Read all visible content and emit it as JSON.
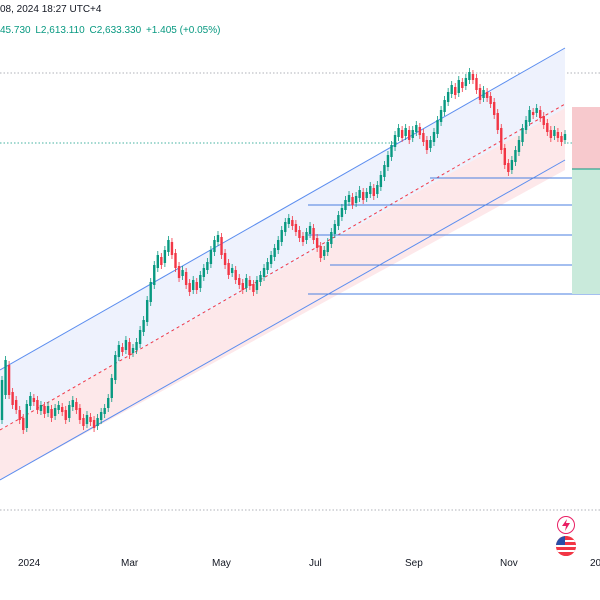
{
  "header": {
    "title_fragment": "08, 2024 18:27 UTC+4",
    "ohlc": {
      "h_fragment": "45.730",
      "low": "L2,613.110",
      "close": "C2,633.330",
      "change": "+1.405 (+0.05%)"
    }
  },
  "colors": {
    "up": "#089981",
    "down": "#f23645",
    "channel_line": "#5b8def",
    "channel_mid": "#f23645",
    "channel_upper_fill": "#eef2fd",
    "channel_lower_fill": "#fde8ea",
    "level_line": "#4a7fe0",
    "stop_zone": "#f7c9cd",
    "target_zone": "#c9eadb"
  },
  "x_axis": {
    "labels": [
      "2024",
      "Mar",
      "May",
      "Jul",
      "Sep",
      "Nov",
      "20"
    ]
  },
  "icons": [
    "lightning-icon",
    "flag-icon"
  ],
  "chart_data": {
    "type": "candlestick",
    "title": "",
    "xlabel": "",
    "ylabel": "",
    "x_ticks": [
      "2024",
      "Mar",
      "May",
      "Jul",
      "Sep",
      "Nov",
      "20"
    ],
    "grid": true,
    "y_axis_visible": false,
    "candles": [
      [
        420,
        380
      ],
      [
        395,
        360
      ],
      [
        365,
        395
      ],
      [
        392,
        405
      ],
      [
        400,
        410
      ],
      [
        410,
        420
      ],
      [
        418,
        430
      ],
      [
        428,
        404
      ],
      [
        406,
        396
      ],
      [
        398,
        402
      ],
      [
        400,
        410
      ],
      [
        411,
        405
      ],
      [
        406,
        414
      ],
      [
        413,
        406
      ],
      [
        409,
        418
      ],
      [
        416,
        408
      ],
      [
        410,
        405
      ],
      [
        407,
        412
      ],
      [
        410,
        420
      ],
      [
        418,
        405
      ],
      [
        407,
        400
      ],
      [
        402,
        410
      ],
      [
        408,
        420
      ],
      [
        418,
        426
      ],
      [
        424,
        415
      ],
      [
        417,
        422
      ],
      [
        420,
        428
      ],
      [
        426,
        418
      ],
      [
        420,
        412
      ],
      [
        414,
        408
      ],
      [
        408,
        398
      ],
      [
        398,
        378
      ],
      [
        380,
        355
      ],
      [
        357,
        345
      ],
      [
        347,
        352
      ],
      [
        350,
        340
      ],
      [
        342,
        355
      ],
      [
        353,
        348
      ],
      [
        350,
        342
      ],
      [
        344,
        330
      ],
      [
        332,
        320
      ],
      [
        322,
        300
      ],
      [
        302,
        282
      ],
      [
        285,
        265
      ],
      [
        268,
        255
      ],
      [
        257,
        265
      ],
      [
        263,
        250
      ],
      [
        252,
        240
      ],
      [
        242,
        255
      ],
      [
        253,
        268
      ],
      [
        266,
        278
      ],
      [
        276,
        270
      ],
      [
        272,
        285
      ],
      [
        283,
        292
      ],
      [
        290,
        280
      ],
      [
        282,
        290
      ],
      [
        288,
        275
      ],
      [
        277,
        268
      ],
      [
        270,
        262
      ],
      [
        264,
        250
      ],
      [
        252,
        240
      ],
      [
        242,
        235
      ],
      [
        237,
        255
      ],
      [
        253,
        265
      ],
      [
        263,
        275
      ],
      [
        273,
        268
      ],
      [
        270,
        280
      ],
      [
        278,
        285
      ],
      [
        283,
        290
      ],
      [
        288,
        278
      ],
      [
        280,
        286
      ],
      [
        284,
        292
      ],
      [
        290,
        280
      ],
      [
        282,
        275
      ],
      [
        277,
        268
      ],
      [
        270,
        262
      ],
      [
        264,
        255
      ],
      [
        257,
        248
      ],
      [
        250,
        240
      ],
      [
        242,
        230
      ],
      [
        232,
        222
      ],
      [
        224,
        218
      ],
      [
        220,
        226
      ],
      [
        224,
        232
      ],
      [
        230,
        238
      ],
      [
        236,
        242
      ],
      [
        240,
        232
      ],
      [
        234,
        226
      ],
      [
        228,
        240
      ],
      [
        238,
        248
      ],
      [
        246,
        258
      ],
      [
        256,
        250
      ],
      [
        252,
        242
      ],
      [
        244,
        232
      ],
      [
        234,
        224
      ],
      [
        226,
        215
      ],
      [
        217,
        208
      ],
      [
        210,
        200
      ],
      [
        202,
        195
      ],
      [
        197,
        205
      ],
      [
        203,
        196
      ],
      [
        198,
        190
      ],
      [
        192,
        200
      ],
      [
        198,
        192
      ],
      [
        194,
        186
      ],
      [
        188,
        196
      ],
      [
        194,
        185
      ],
      [
        187,
        175
      ],
      [
        177,
        165
      ],
      [
        167,
        155
      ],
      [
        157,
        145
      ],
      [
        147,
        135
      ],
      [
        137,
        128
      ],
      [
        130,
        138
      ],
      [
        136,
        128
      ],
      [
        130,
        140
      ],
      [
        138,
        130
      ],
      [
        132,
        125
      ],
      [
        127,
        135
      ],
      [
        133,
        142
      ],
      [
        140,
        150
      ],
      [
        148,
        140
      ],
      [
        142,
        132
      ],
      [
        134,
        120
      ],
      [
        122,
        110
      ],
      [
        112,
        100
      ],
      [
        102,
        92
      ],
      [
        94,
        85
      ],
      [
        87,
        95
      ],
      [
        93,
        80
      ],
      [
        82,
        88
      ],
      [
        86,
        78
      ],
      [
        80,
        72
      ],
      [
        74,
        80
      ],
      [
        78,
        90
      ],
      [
        88,
        100
      ],
      [
        98,
        90
      ],
      [
        92,
        98
      ],
      [
        96,
        104
      ],
      [
        102,
        115
      ],
      [
        113,
        130
      ],
      [
        128,
        150
      ],
      [
        148,
        165
      ],
      [
        163,
        172
      ],
      [
        170,
        160
      ],
      [
        162,
        150
      ],
      [
        152,
        140
      ],
      [
        142,
        128
      ],
      [
        130,
        120
      ],
      [
        122,
        110
      ],
      [
        112,
        115
      ],
      [
        113,
        108
      ],
      [
        110,
        118
      ],
      [
        116,
        125
      ],
      [
        123,
        132
      ],
      [
        130,
        138
      ],
      [
        136,
        130
      ],
      [
        132,
        138
      ],
      [
        136,
        142
      ],
      [
        140,
        134
      ]
    ]
  }
}
